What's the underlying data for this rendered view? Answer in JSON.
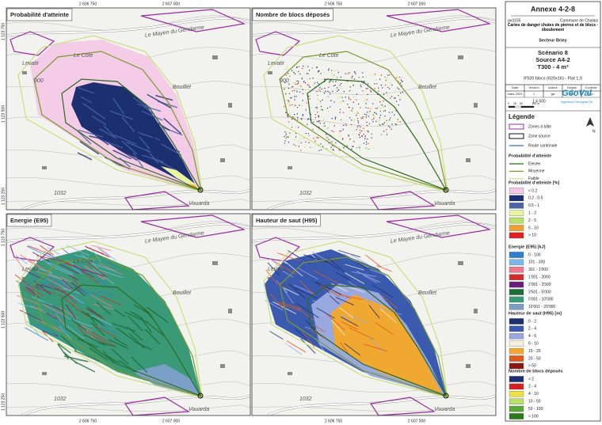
{
  "header": {
    "title": "Annexe 4-2-8",
    "ref": "gx3155",
    "commune": "Commune de Chalais",
    "subject": "Cartes de danger chutes de pierres et de blocs - éboulement",
    "sector": "Secteur Briey"
  },
  "scenario": {
    "name": "Scénario 8",
    "source": "Source A4-2",
    "return_period": "T300 - 4 m³",
    "blocks": "9'920 blocs (620x16) - Flat 1.5"
  },
  "info_table": {
    "headers": [
      "Date",
      "Version",
      "Auteur",
      "Dessin",
      "Contrôle"
    ],
    "row": [
      "mars 2023",
      "1",
      "gw",
      "gw",
      "jbp"
    ]
  },
  "scale": {
    "ticks": [
      "0",
      "25",
      "50",
      "100"
    ],
    "unit": "m",
    "ratio": "1:4 500"
  },
  "logo": {
    "name": "GéoVal",
    "tagline": "Ingénieurs Géologues SA"
  },
  "north": "N",
  "panels": [
    {
      "title": "Probabilité d'atteinte"
    },
    {
      "title": "Nombre de blocs déposés"
    },
    {
      "title": "Energie (E95)"
    },
    {
      "title": "Hauteur de saut (H95)"
    }
  ],
  "map_labels": [
    "Le Mayen du Gendarme",
    "Le Cote",
    "Bouillet",
    "Vouarda",
    "1032",
    "900",
    "Levatir"
  ],
  "coordinates": {
    "x": [
      "2 606 750",
      "2 607 000"
    ],
    "y": [
      "1 123 750",
      "1 123 500",
      "1 123 250"
    ]
  },
  "legend": {
    "title": "Légende",
    "base": [
      {
        "label": "Zones à bâtir",
        "color": "#9b2aa0"
      },
      {
        "label": "Zone source",
        "color": "#111111"
      },
      {
        "label": "Route cantonale",
        "color": "#2a6fb0"
      }
    ],
    "sections": [
      {
        "title": "Probabilité d'atteinte",
        "kind": "line",
        "items": [
          {
            "label": "Elevée",
            "color": "#2e6b1f"
          },
          {
            "label": "Moyenne",
            "color": "#7a9a2a"
          },
          {
            "label": "Faible",
            "color": "#c8e07a"
          }
        ]
      },
      {
        "title": "Probabilité d'atteinte [%]",
        "kind": "box",
        "items": [
          {
            "label": "< 0.2",
            "color": "#f6c6e6"
          },
          {
            "label": "0.2 - 0.5",
            "color": "#1c2f6e"
          },
          {
            "label": "0.5 - 1",
            "color": "#4a64a8"
          },
          {
            "label": "1 - 2",
            "color": "#e8f4a0"
          },
          {
            "label": "2 - 5",
            "color": "#b8e068"
          },
          {
            "label": "5 - 10",
            "color": "#f0a030"
          },
          {
            "label": "> 10",
            "color": "#e02020"
          }
        ]
      },
      {
        "title": "Energie (E95) [kJ]",
        "kind": "box",
        "items": [
          {
            "label": "0 - 100",
            "color": "#2f7fd0"
          },
          {
            "label": "101 - 300",
            "color": "#7ab8ec"
          },
          {
            "label": "301 - 1'000",
            "color": "#f07a8a"
          },
          {
            "label": "1'001 - 2000",
            "color": "#d62a2a"
          },
          {
            "label": "2'001 - 3'500",
            "color": "#6a1e7a"
          },
          {
            "label": "3'501 - 5'000",
            "color": "#1f6e3a"
          },
          {
            "label": "5'001 - 10'000",
            "color": "#3a9a78"
          },
          {
            "label": "10'001 - 20'000",
            "color": "#7aa0c8"
          }
        ]
      },
      {
        "title": "Hauteur de saut (H95) [m]",
        "kind": "box",
        "items": [
          {
            "label": "0 - 2",
            "color": "#1c2f6e"
          },
          {
            "label": "2 - 4",
            "color": "#3a5ab0"
          },
          {
            "label": "4 - 6",
            "color": "#9aa8e0"
          },
          {
            "label": "6 - 10",
            "color": "#f4f0d8"
          },
          {
            "label": "10 - 20",
            "color": "#f0a830"
          },
          {
            "label": "20 - 50",
            "color": "#e05a20"
          },
          {
            "label": "> 50",
            "color": "#8a1a10"
          }
        ]
      },
      {
        "title": "Nombre de blocs déposés",
        "kind": "box",
        "items": [
          {
            "label": "< 2",
            "color": "#1c2f6e"
          },
          {
            "label": "2 - 4",
            "color": "#d62020"
          },
          {
            "label": "4 - 10",
            "color": "#f0e040"
          },
          {
            "label": "10 - 50",
            "color": "#b8e068"
          },
          {
            "label": "50 - 100",
            "color": "#58a838"
          },
          {
            "label": "> 100",
            "color": "#2a7a1a"
          }
        ]
      }
    ]
  }
}
